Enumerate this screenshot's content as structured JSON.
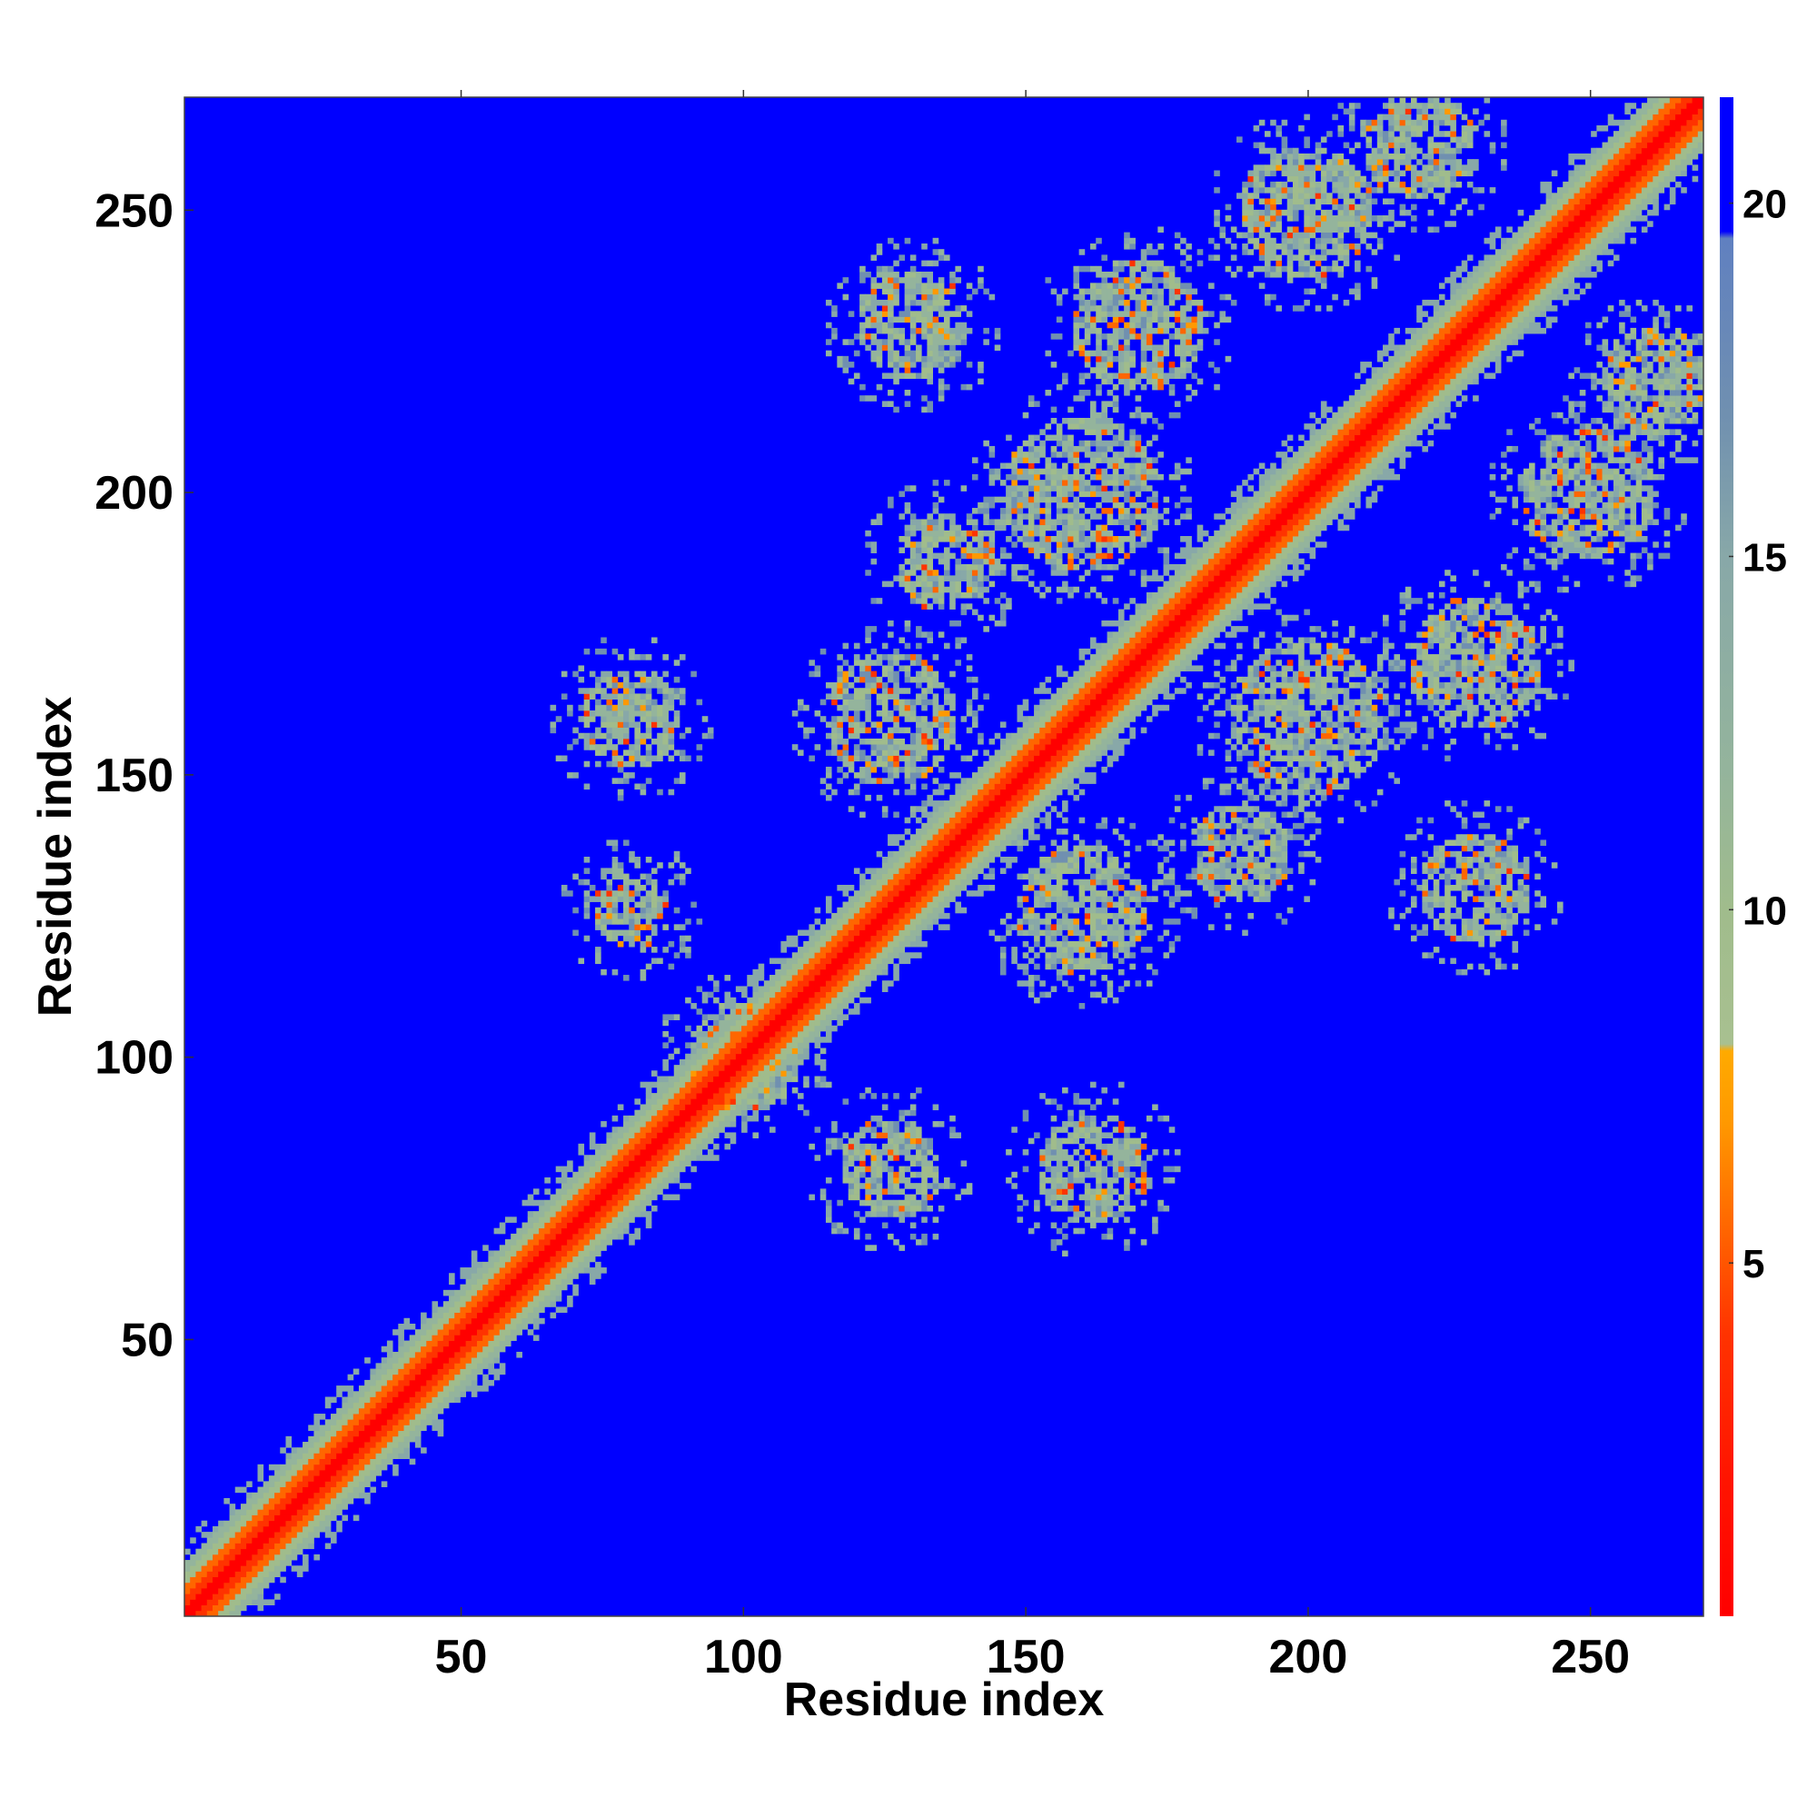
{
  "chart_data": {
    "type": "heatmap",
    "title": "",
    "xlabel": "Residue index",
    "ylabel": "Residue index",
    "x_range": [
      1,
      270
    ],
    "y_range": [
      1,
      270
    ],
    "n_residues": 270,
    "x_ticks": [
      50,
      100,
      150,
      200,
      250
    ],
    "y_ticks": [
      50,
      100,
      150,
      200,
      250
    ],
    "colorbar": {
      "range": [
        0,
        21.5
      ],
      "ticks": [
        5,
        10,
        15,
        20
      ],
      "stops": [
        {
          "value": 0,
          "color": "#ff0000"
        },
        {
          "value": 2,
          "color": "#ff1500"
        },
        {
          "value": 4,
          "color": "#ff3300"
        },
        {
          "value": 5.5,
          "color": "#ff6600"
        },
        {
          "value": 7,
          "color": "#ff9900"
        },
        {
          "value": 8,
          "color": "#ffaa00"
        },
        {
          "value": 8.1,
          "color": "#a8c090"
        },
        {
          "value": 10,
          "color": "#a0bc8c"
        },
        {
          "value": 12,
          "color": "#94b49c"
        },
        {
          "value": 15,
          "color": "#88a8a8"
        },
        {
          "value": 17,
          "color": "#7090b0"
        },
        {
          "value": 19.5,
          "color": "#6080c0"
        },
        {
          "value": 19.6,
          "color": "#0000ff"
        },
        {
          "value": 21.5,
          "color": "#0000ff"
        }
      ]
    },
    "colors": {
      "background": "#0000ff",
      "contact_close": "#ff0000",
      "contact_mid": "#ff8800",
      "near": "#a2bd8c"
    },
    "features": {
      "diagonal": {
        "from": 1,
        "to": 270
      },
      "contact_clusters": [
        {
          "x": 80,
          "y": 160,
          "r": 9
        },
        {
          "x": 80,
          "y": 126,
          "r": 7
        },
        {
          "x": 126,
          "y": 80,
          "r": 9
        },
        {
          "x": 162,
          "y": 80,
          "r": 10
        },
        {
          "x": 160,
          "y": 126,
          "r": 12
        },
        {
          "x": 126,
          "y": 160,
          "r": 12
        },
        {
          "x": 160,
          "y": 200,
          "r": 14
        },
        {
          "x": 200,
          "y": 160,
          "r": 14
        },
        {
          "x": 170,
          "y": 230,
          "r": 12
        },
        {
          "x": 230,
          "y": 170,
          "r": 12
        },
        {
          "x": 200,
          "y": 250,
          "r": 12
        },
        {
          "x": 250,
          "y": 200,
          "r": 12
        },
        {
          "x": 220,
          "y": 262,
          "r": 10
        },
        {
          "x": 262,
          "y": 220,
          "r": 10
        },
        {
          "x": 230,
          "y": 130,
          "r": 10
        },
        {
          "x": 130,
          "y": 230,
          "r": 10
        },
        {
          "x": 188,
          "y": 136,
          "r": 9
        },
        {
          "x": 136,
          "y": 188,
          "r": 9
        },
        {
          "x": 100,
          "y": 100,
          "r": 10
        }
      ]
    }
  }
}
